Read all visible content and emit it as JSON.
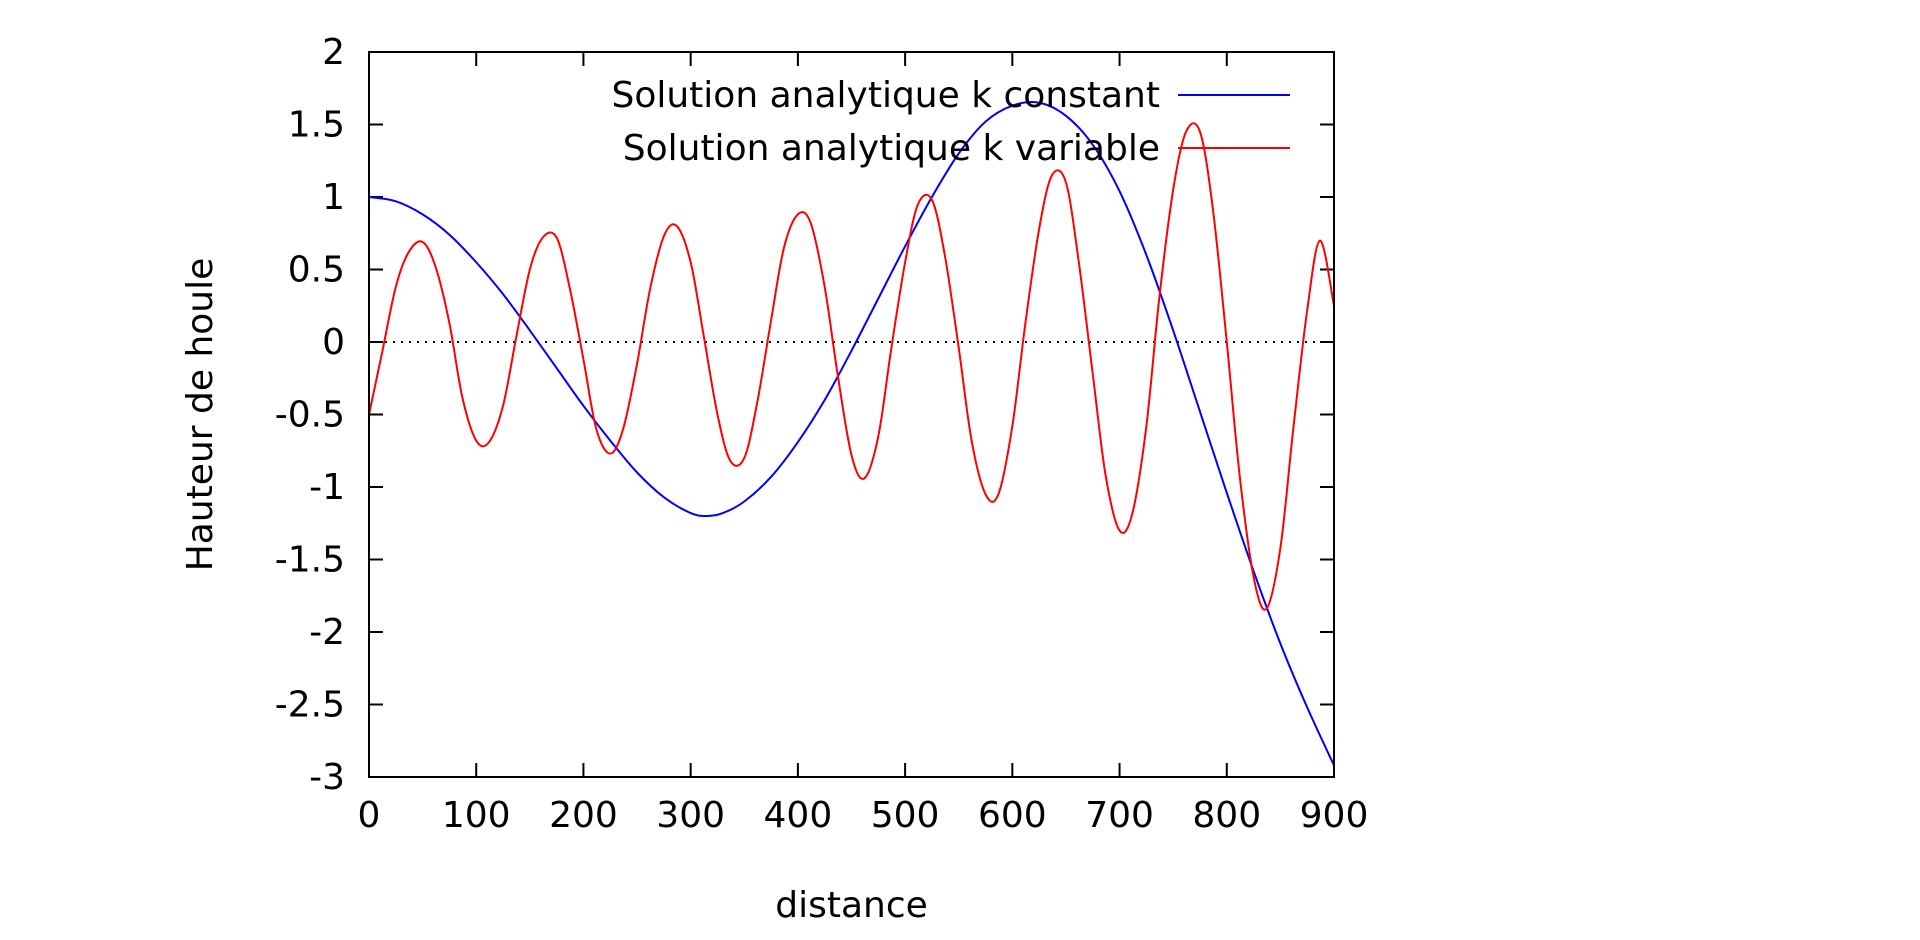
{
  "chart_data": {
    "type": "line",
    "title": "",
    "xlabel": "distance",
    "ylabel": "Hauteur de houle",
    "xlim": [
      0,
      900
    ],
    "ylim": [
      -3,
      2
    ],
    "x_ticks": [
      0,
      100,
      200,
      300,
      400,
      500,
      600,
      700,
      800,
      900
    ],
    "y_ticks": [
      -3,
      -2.5,
      -2,
      -1.5,
      -1,
      -0.5,
      0,
      0.5,
      1,
      1.5,
      2
    ],
    "x_tick_labels": [
      "0",
      "100",
      "200",
      "300",
      "400",
      "500",
      "600",
      "700",
      "800",
      "900"
    ],
    "y_tick_labels": [
      "-3",
      "-2.5",
      "-2",
      "-1.5",
      "-1",
      "-0.5",
      "0",
      "0.5",
      "1",
      "1.5",
      "2"
    ],
    "grid": false,
    "legend_position": "top-right",
    "zero_line": {
      "y": 0,
      "style": "dotted",
      "color": "#000000"
    },
    "series": [
      {
        "name": "Solution analytique k constant",
        "color": "#0000ff",
        "x": [
          0,
          25,
          50,
          75,
          100,
          125,
          150,
          175,
          200,
          225,
          250,
          275,
          300,
          315,
          330,
          350,
          375,
          400,
          425,
          450,
          475,
          500,
          525,
          550,
          575,
          600,
          625,
          650,
          675,
          700,
          725,
          750,
          775,
          800,
          825,
          850,
          875,
          900
        ],
        "y": [
          1.0,
          0.97,
          0.88,
          0.74,
          0.55,
          0.33,
          0.08,
          -0.18,
          -0.44,
          -0.68,
          -0.9,
          -1.07,
          -1.18,
          -1.2,
          -1.18,
          -1.1,
          -0.93,
          -0.69,
          -0.4,
          -0.06,
          0.3,
          0.66,
          1.0,
          1.3,
          1.52,
          1.63,
          1.65,
          1.56,
          1.36,
          1.04,
          0.6,
          0.08,
          -0.48,
          -1.04,
          -1.58,
          -2.08,
          -2.52,
          -2.92
        ]
      },
      {
        "name": "Solution analytique k variable",
        "color": "#ff0000",
        "x": [
          0,
          12,
          25,
          37,
          50,
          62,
          75,
          87,
          100,
          112,
          125,
          137,
          150,
          162,
          175,
          187,
          200,
          212,
          225,
          237,
          250,
          262,
          275,
          287,
          300,
          312,
          325,
          337,
          350,
          362,
          375,
          387,
          400,
          412,
          425,
          437,
          450,
          462,
          475,
          487,
          500,
          512,
          525,
          537,
          550,
          562,
          575,
          587,
          600,
          612,
          625,
          637,
          650,
          662,
          675,
          687,
          700,
          712,
          725,
          737,
          750,
          762,
          775,
          787,
          800,
          812,
          825,
          837,
          850,
          862,
          875,
          887,
          900
        ],
        "y": [
          -0.5,
          -0.08,
          0.38,
          0.62,
          0.69,
          0.52,
          0.13,
          -0.38,
          -0.68,
          -0.69,
          -0.44,
          0.02,
          0.5,
          0.72,
          0.72,
          0.38,
          -0.12,
          -0.6,
          -0.77,
          -0.6,
          -0.15,
          0.36,
          0.73,
          0.8,
          0.55,
          0.05,
          -0.5,
          -0.82,
          -0.8,
          -0.42,
          0.15,
          0.65,
          0.88,
          0.82,
          0.38,
          -0.22,
          -0.78,
          -0.94,
          -0.65,
          -0.05,
          0.55,
          0.95,
          0.98,
          0.6,
          -0.04,
          -0.68,
          -1.05,
          -1.05,
          -0.58,
          0.12,
          0.78,
          1.15,
          1.1,
          0.55,
          -0.22,
          -0.92,
          -1.3,
          -1.18,
          -0.58,
          0.3,
          1.05,
          1.45,
          1.45,
          0.92,
          0.0,
          -0.92,
          -1.62,
          -1.84,
          -1.42,
          -0.6,
          0.22,
          0.7,
          0.25
        ]
      }
    ]
  }
}
